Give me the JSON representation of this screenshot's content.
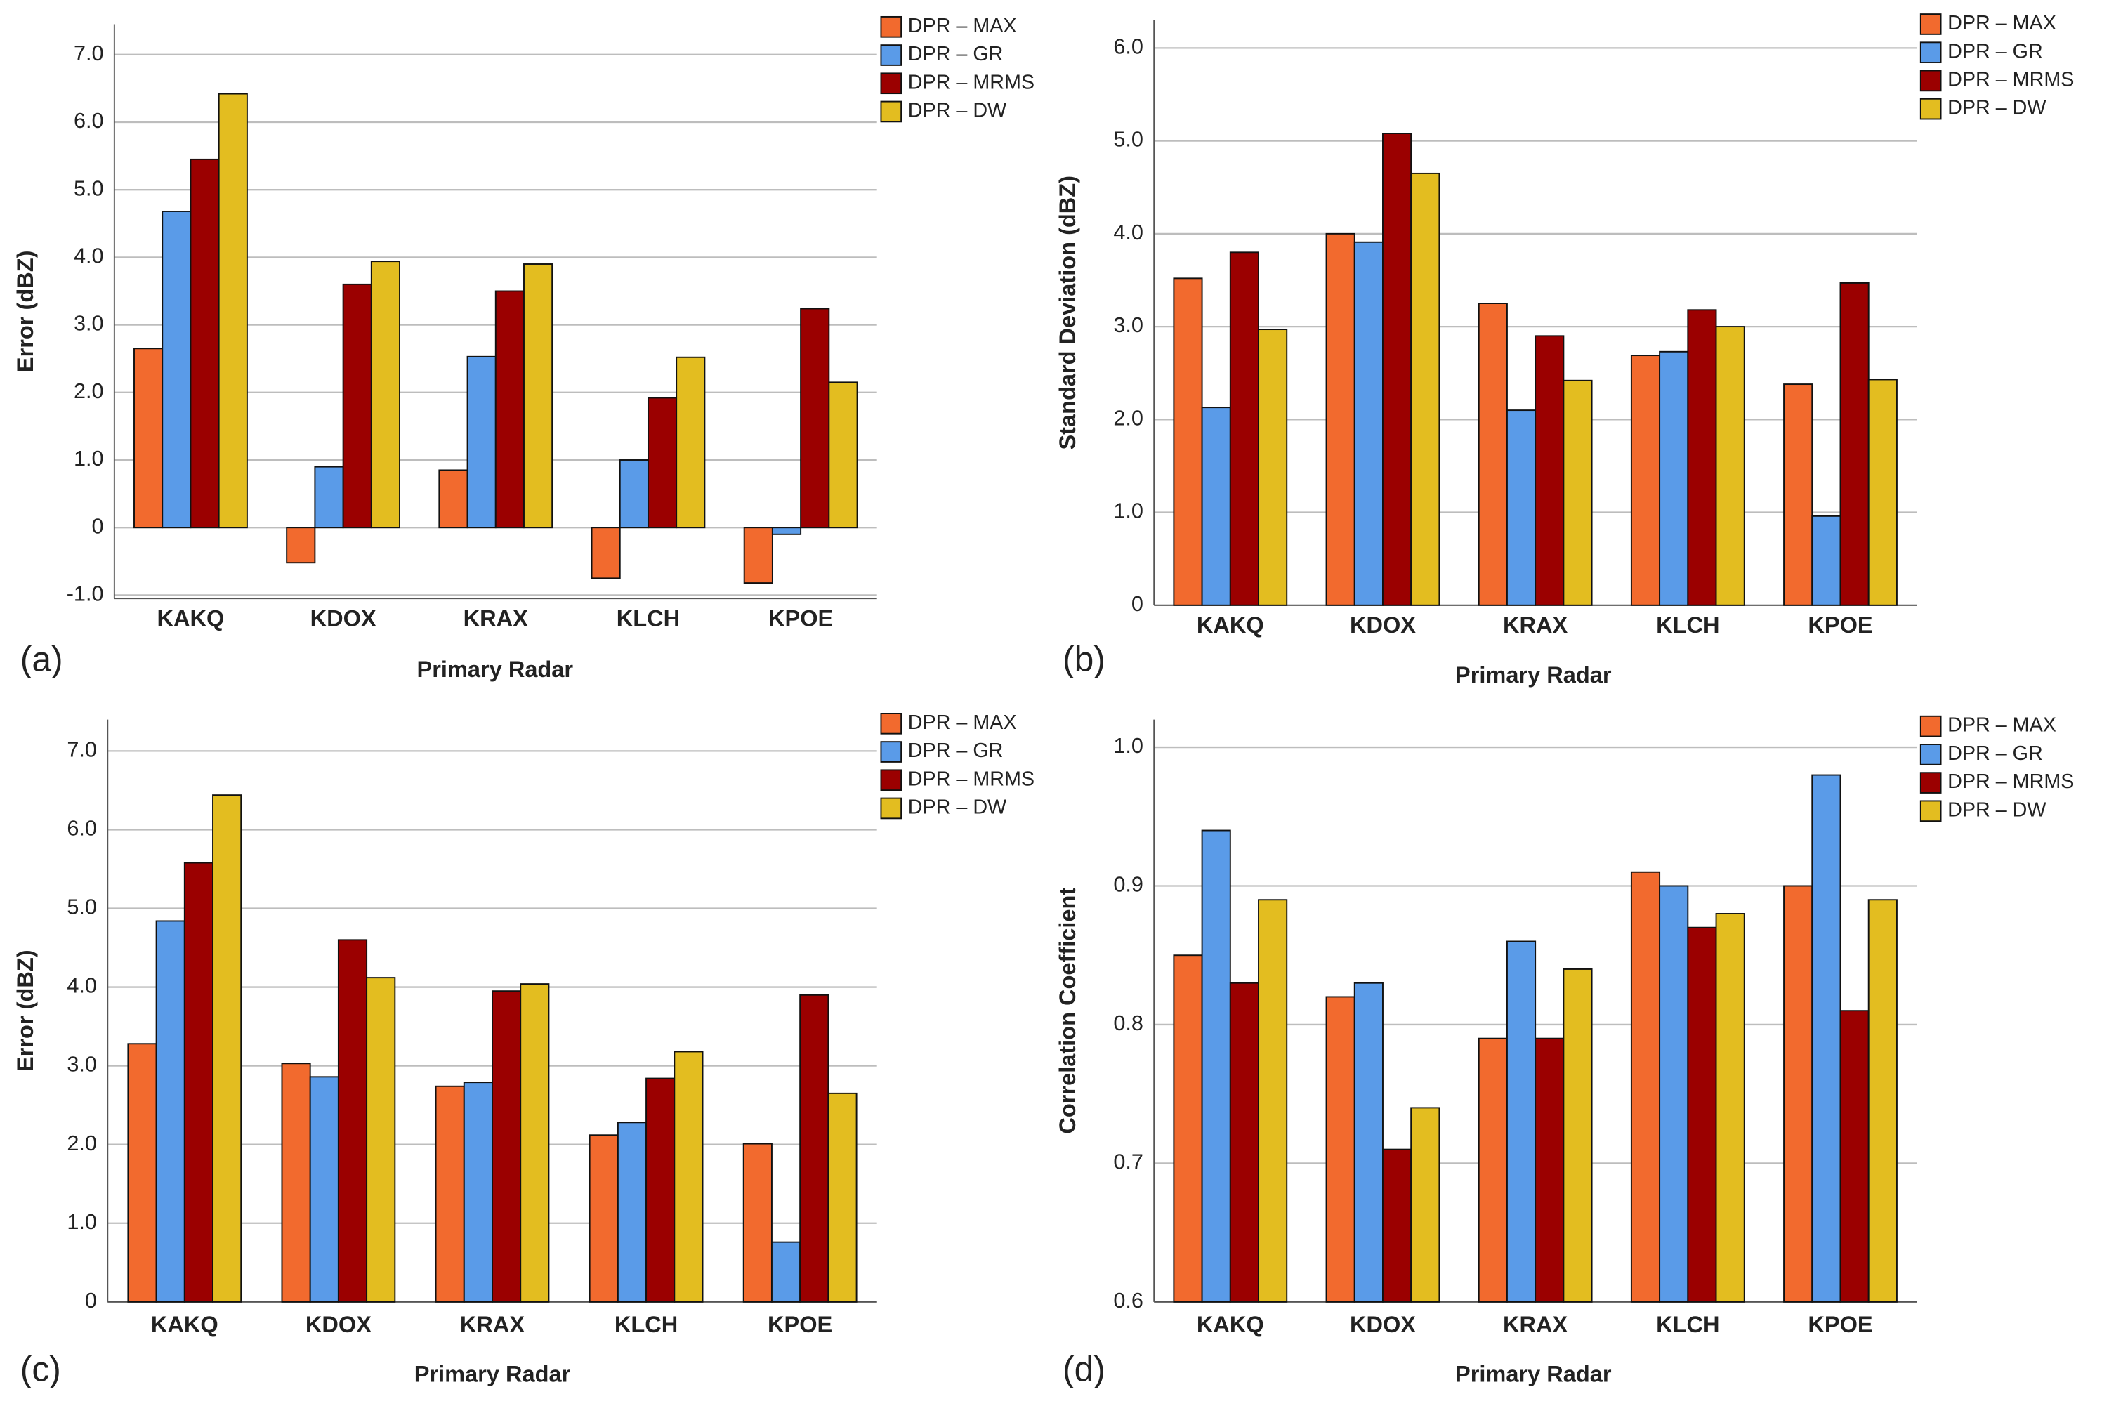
{
  "chart_data": [
    {
      "type": "bar",
      "panel": "(a)",
      "xlabel": "Primary Radar",
      "ylabel": "Error (dBZ)",
      "categories": [
        "KAKQ",
        "KDOX",
        "KRAX",
        "KLCH",
        "KPOE"
      ],
      "series": [
        {
          "name": "DPR – MAX",
          "color": "#f26a2e",
          "values": [
            2.65,
            -0.52,
            0.85,
            -0.75,
            -0.82
          ]
        },
        {
          "name": "DPR – GR",
          "color": "#5a9be8",
          "values": [
            4.68,
            0.9,
            2.53,
            1.0,
            -0.1
          ]
        },
        {
          "name": "DPR – MRMS",
          "color": "#9b0000",
          "values": [
            5.45,
            3.6,
            3.5,
            1.92,
            3.24
          ]
        },
        {
          "name": "DPR – DW",
          "color": "#e3bd20",
          "values": [
            6.42,
            3.94,
            3.9,
            2.52,
            2.15
          ]
        }
      ],
      "ylim": [
        -1.05,
        7.45
      ],
      "yticks": [
        {
          "value": -1,
          "label": "-1.0"
        },
        0,
        {
          "value": 1,
          "label": "1.0"
        },
        {
          "value": 2,
          "label": "2.0"
        },
        {
          "value": 3,
          "label": "3.0"
        },
        {
          "value": 4,
          "label": "4.0"
        },
        {
          "value": 5,
          "label": "5.0"
        },
        {
          "value": 6,
          "label": "6.0"
        },
        {
          "value": 7,
          "label": "7.0"
        }
      ],
      "grid": true,
      "legend": "upper-right"
    },
    {
      "type": "bar",
      "panel": "(b)",
      "xlabel": "Primary Radar",
      "ylabel": "Standard Deviation (dBZ)",
      "categories": [
        "KAKQ",
        "KDOX",
        "KRAX",
        "KLCH",
        "KPOE"
      ],
      "series": [
        {
          "name": "DPR – MAX",
          "color": "#f26a2e",
          "values": [
            3.52,
            4.0,
            3.25,
            2.69,
            2.38
          ]
        },
        {
          "name": "DPR – GR",
          "color": "#5a9be8",
          "values": [
            2.13,
            3.91,
            2.1,
            2.73,
            0.96
          ]
        },
        {
          "name": "DPR – MRMS",
          "color": "#9b0000",
          "values": [
            3.8,
            5.08,
            2.9,
            3.18,
            3.47
          ]
        },
        {
          "name": "DPR – DW",
          "color": "#e3bd20",
          "values": [
            2.97,
            4.65,
            2.42,
            3.0,
            2.43
          ]
        }
      ],
      "ylim": [
        0,
        6.3
      ],
      "yticks": [
        0,
        {
          "value": 1,
          "label": "1.0"
        },
        {
          "value": 2,
          "label": "2.0"
        },
        {
          "value": 3,
          "label": "3.0"
        },
        {
          "value": 4,
          "label": "4.0"
        },
        {
          "value": 5,
          "label": "5.0"
        },
        {
          "value": 6,
          "label": "6.0"
        }
      ],
      "grid": true,
      "legend": "upper-right"
    },
    {
      "type": "bar",
      "panel": "(c)",
      "xlabel": "Primary Radar",
      "ylabel": "Error (dBZ)",
      "categories": [
        "KAKQ",
        "KDOX",
        "KRAX",
        "KLCH",
        "KPOE"
      ],
      "series": [
        {
          "name": "DPR – MAX",
          "color": "#f26a2e",
          "values": [
            3.28,
            3.03,
            2.74,
            2.12,
            2.01
          ]
        },
        {
          "name": "DPR – GR",
          "color": "#5a9be8",
          "values": [
            4.84,
            2.86,
            2.79,
            2.28,
            0.76
          ]
        },
        {
          "name": "DPR – MRMS",
          "color": "#9b0000",
          "values": [
            5.58,
            4.6,
            3.95,
            2.84,
            3.9
          ]
        },
        {
          "name": "DPR – DW",
          "color": "#e3bd20",
          "values": [
            6.44,
            4.12,
            4.04,
            3.18,
            2.65
          ]
        }
      ],
      "ylim": [
        0,
        7.4
      ],
      "yticks": [
        0,
        {
          "value": 1,
          "label": "1.0"
        },
        {
          "value": 2,
          "label": "2.0"
        },
        {
          "value": 3,
          "label": "3.0"
        },
        {
          "value": 4,
          "label": "4.0"
        },
        {
          "value": 5,
          "label": "5.0"
        },
        {
          "value": 6,
          "label": "6.0"
        },
        {
          "value": 7,
          "label": "7.0"
        }
      ],
      "grid": true,
      "legend": "upper-right"
    },
    {
      "type": "bar",
      "panel": "(d)",
      "xlabel": "Primary Radar",
      "ylabel": "Correlation Coefficient",
      "categories": [
        "KAKQ",
        "KDOX",
        "KRAX",
        "KLCH",
        "KPOE"
      ],
      "series": [
        {
          "name": "DPR – MAX",
          "color": "#f26a2e",
          "values": [
            0.85,
            0.82,
            0.79,
            0.91,
            0.9
          ]
        },
        {
          "name": "DPR – GR",
          "color": "#5a9be8",
          "values": [
            0.94,
            0.83,
            0.86,
            0.9,
            0.98
          ]
        },
        {
          "name": "DPR – MRMS",
          "color": "#9b0000",
          "values": [
            0.83,
            0.71,
            0.79,
            0.87,
            0.81
          ]
        },
        {
          "name": "DPR – DW",
          "color": "#e3bd20",
          "values": [
            0.89,
            0.74,
            0.84,
            0.88,
            0.89
          ]
        }
      ],
      "ylim": [
        0.6,
        1.02
      ],
      "yticks": [
        0.6,
        0.7,
        0.8,
        0.9,
        {
          "value": 1,
          "label": "1.0"
        }
      ],
      "grid": true,
      "legend": "upper-right"
    }
  ]
}
